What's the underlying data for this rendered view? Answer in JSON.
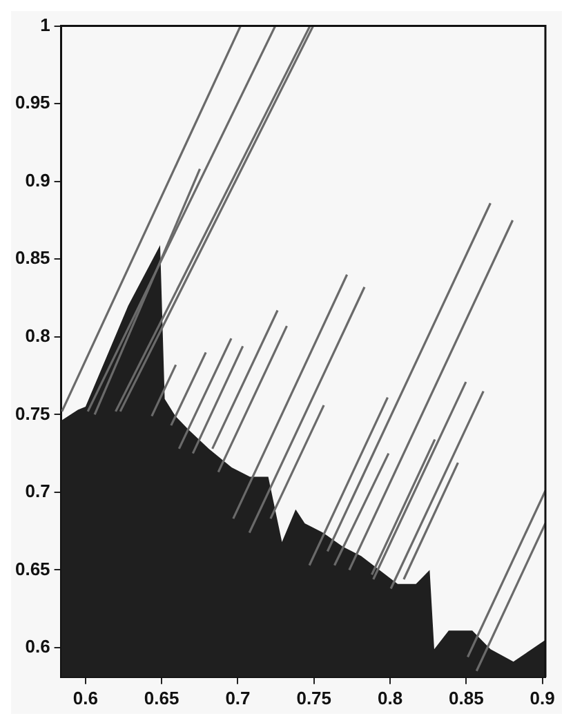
{
  "chart_data": {
    "type": "line",
    "xlim": [
      0.584,
      0.902
    ],
    "ylim": [
      0.581,
      1
    ],
    "xticks": [
      {
        "value": 0.6,
        "label": "0.6"
      },
      {
        "value": 0.65,
        "label": "0.65"
      },
      {
        "value": 0.7,
        "label": "0.7"
      },
      {
        "value": 0.75,
        "label": "0.75"
      },
      {
        "value": 0.8,
        "label": "0.8"
      },
      {
        "value": 0.85,
        "label": "0.85"
      },
      {
        "value": 0.9,
        "label": "0.9"
      }
    ],
    "yticks": [
      {
        "value": 0.6,
        "label": "0.6"
      },
      {
        "value": 0.65,
        "label": "0.65"
      },
      {
        "value": 0.7,
        "label": "0.7"
      },
      {
        "value": 0.75,
        "label": "0.75"
      },
      {
        "value": 0.8,
        "label": "0.8"
      },
      {
        "value": 0.85,
        "label": "0.85"
      },
      {
        "value": 0.9,
        "label": "0.9"
      },
      {
        "value": 0.95,
        "label": "0.95"
      },
      {
        "value": 1,
        "label": "1"
      }
    ],
    "grid": false,
    "legend": false,
    "marker": "none",
    "line_style": "solid",
    "series": [
      {
        "type": "area",
        "color": "#1f1f1f",
        "x": [
          0.584,
          0.595,
          0.6,
          0.628,
          0.649,
          0.652,
          0.659,
          0.668,
          0.681,
          0.696,
          0.708,
          0.72,
          0.729,
          0.738,
          0.744,
          0.756,
          0.769,
          0.781,
          0.793,
          0.805,
          0.817,
          0.826,
          0.829,
          0.8385,
          0.854,
          0.866,
          0.881,
          0.893,
          0.902
        ],
        "values": [
          0.746,
          0.753,
          0.755,
          0.82,
          0.859,
          0.76,
          0.749,
          0.74,
          0.728,
          0.716,
          0.71,
          0.71,
          0.668,
          0.689,
          0.68,
          0.674,
          0.665,
          0.659,
          0.65,
          0.641,
          0.641,
          0.65,
          0.599,
          0.611,
          0.611,
          0.599,
          0.591,
          0.599,
          0.605
        ]
      },
      {
        "type": "line",
        "color": "#6a6a6a",
        "x": [
          0.5845,
          0.7018
        ],
        "values": [
          0.752,
          1
        ]
      },
      {
        "type": "line",
        "color": "#6a6a6a",
        "x": [
          0.6015,
          0.7246
        ],
        "values": [
          0.752,
          1
        ]
      },
      {
        "type": "line",
        "color": "#6a6a6a",
        "x": [
          0.606,
          0.6751
        ],
        "values": [
          0.75,
          0.908
        ]
      },
      {
        "type": "line",
        "color": "#6a6a6a",
        "x": [
          0.6198,
          0.7474
        ],
        "values": [
          0.752,
          1
        ]
      },
      {
        "type": "line",
        "color": "#6a6a6a",
        "x": [
          0.6228,
          0.7495
        ],
        "values": [
          0.752,
          1
        ]
      },
      {
        "type": "line",
        "color": "#6a6a6a",
        "x": [
          0.6435,
          0.6593
        ],
        "values": [
          0.749,
          0.782
        ]
      },
      {
        "type": "line",
        "color": "#6a6a6a",
        "x": [
          0.6562,
          0.679
        ],
        "values": [
          0.743,
          0.79
        ]
      },
      {
        "type": "line",
        "color": "#6a6a6a",
        "x": [
          0.6614,
          0.6957
        ],
        "values": [
          0.728,
          0.799
        ]
      },
      {
        "type": "line",
        "color": "#6a6a6a",
        "x": [
          0.6705,
          0.7033
        ],
        "values": [
          0.725,
          0.794
        ]
      },
      {
        "type": "line",
        "color": "#6a6a6a",
        "x": [
          0.6833,
          0.7261
        ],
        "values": [
          0.728,
          0.817
        ]
      },
      {
        "type": "line",
        "color": "#6a6a6a",
        "x": [
          0.6872,
          0.7322
        ],
        "values": [
          0.713,
          0.807
        ]
      },
      {
        "type": "line",
        "color": "#6a6a6a",
        "x": [
          0.697,
          0.7717
        ],
        "values": [
          0.683,
          0.84
        ]
      },
      {
        "type": "line",
        "color": "#6a6a6a",
        "x": [
          0.7076,
          0.7832
        ],
        "values": [
          0.674,
          0.832
        ]
      },
      {
        "type": "line",
        "color": "#6a6a6a",
        "x": [
          0.7215,
          0.7565
        ],
        "values": [
          0.683,
          0.756
        ]
      },
      {
        "type": "line",
        "color": "#6a6a6a",
        "x": [
          0.747,
          0.7984
        ],
        "values": [
          0.653,
          0.761
        ]
      },
      {
        "type": "line",
        "color": "#6a6a6a",
        "x": [
          0.7589,
          0.8659
        ],
        "values": [
          0.662,
          0.886
        ]
      },
      {
        "type": "line",
        "color": "#6a6a6a",
        "x": [
          0.7635,
          0.799
        ],
        "values": [
          0.653,
          0.725
        ]
      },
      {
        "type": "line",
        "color": "#6a6a6a",
        "x": [
          0.7732,
          0.8805
        ],
        "values": [
          0.65,
          0.875
        ]
      },
      {
        "type": "line",
        "color": "#6a6a6a",
        "x": [
          0.788,
          0.8294
        ],
        "values": [
          0.647,
          0.734
        ]
      },
      {
        "type": "line",
        "color": "#6a6a6a",
        "x": [
          0.789,
          0.8498
        ],
        "values": [
          0.644,
          0.771
        ]
      },
      {
        "type": "line",
        "color": "#6a6a6a",
        "x": [
          0.8005,
          0.8613
        ],
        "values": [
          0.638,
          0.765
        ]
      },
      {
        "type": "line",
        "color": "#6a6a6a",
        "x": [
          0.809,
          0.8446
        ],
        "values": [
          0.644,
          0.719
        ]
      },
      {
        "type": "line",
        "color": "#6a6a6a",
        "x": [
          0.851,
          0.902
        ],
        "values": [
          0.594,
          0.701
        ]
      },
      {
        "type": "line",
        "color": "#6a6a6a",
        "x": [
          0.8568,
          0.902
        ],
        "values": [
          0.585,
          0.68
        ]
      }
    ]
  }
}
